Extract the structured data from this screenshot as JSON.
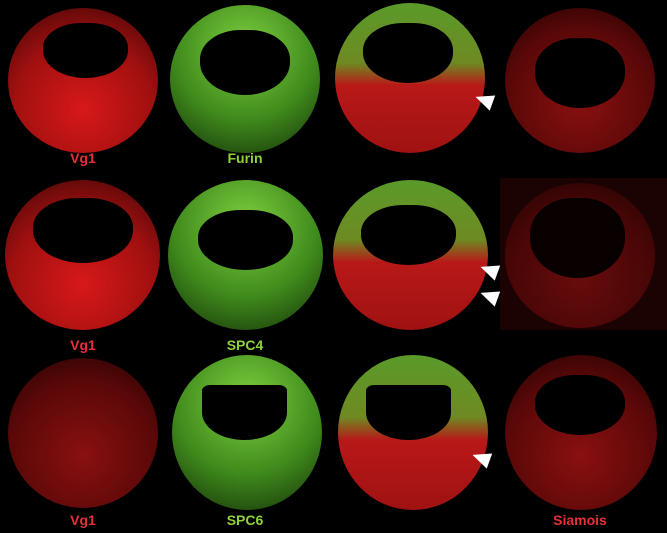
{
  "figure": {
    "rows": [
      {
        "labels": [
          "Vg1",
          "Furin",
          "",
          ""
        ],
        "arrowheads": 1
      },
      {
        "labels": [
          "Vg1",
          "SPC4",
          "",
          ""
        ],
        "arrowheads": 2
      },
      {
        "labels": [
          "Vg1",
          "SPC6",
          "",
          "Siamois"
        ],
        "arrowheads": 1
      }
    ],
    "colors": {
      "red_label": "#e8303a",
      "green_label": "#8ed23c",
      "arrowhead": "#ffffff"
    }
  }
}
